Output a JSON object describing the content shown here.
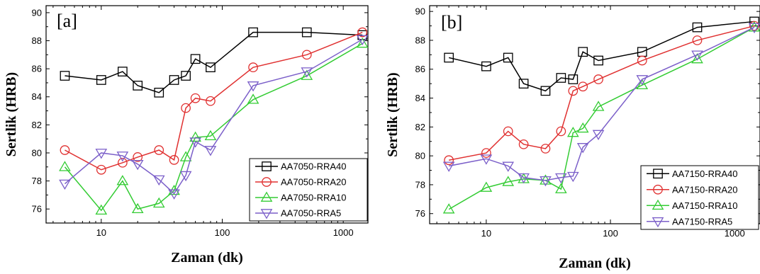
{
  "chart_data": [
    {
      "type": "line",
      "panel_label": "[a]",
      "xlabel": "Zaman (dk)",
      "ylabel": "Sertlik (HRB)",
      "xscale": "log",
      "xlim": [
        3.5,
        1600
      ],
      "ylim": [
        75,
        90.5
      ],
      "xticks": [
        10,
        100,
        1000
      ],
      "xtick_labels": [
        "10",
        "100",
        "1000"
      ],
      "yticks": [
        76,
        78,
        80,
        82,
        84,
        86,
        88,
        90
      ],
      "ytick_labels": [
        "76",
        "78",
        "80",
        "82",
        "84",
        "86",
        "88",
        "90"
      ],
      "legend_position": "bottom-right",
      "series": [
        {
          "name": "AA7050-RRA40",
          "color": "#000000",
          "marker": "square",
          "x": [
            5,
            10,
            15,
            20,
            30,
            40,
            50,
            60,
            80,
            180,
            500,
            1440
          ],
          "y": [
            85.5,
            85.2,
            85.8,
            84.8,
            84.3,
            85.2,
            85.5,
            86.7,
            86.1,
            88.6,
            88.6,
            88.4
          ]
        },
        {
          "name": "AA7050-RRA20",
          "color": "#e03030",
          "marker": "circle",
          "x": [
            5,
            10,
            15,
            20,
            30,
            40,
            50,
            60,
            80,
            180,
            500,
            1440
          ],
          "y": [
            80.2,
            78.8,
            79.3,
            79.7,
            80.2,
            79.5,
            83.2,
            83.9,
            83.7,
            86.1,
            87.0,
            88.6
          ]
        },
        {
          "name": "AA7050-RRA10",
          "color": "#33cc33",
          "marker": "triangle-up",
          "x": [
            5,
            10,
            15,
            20,
            30,
            40,
            50,
            60,
            80,
            180,
            500,
            1440
          ],
          "y": [
            79.0,
            75.9,
            78.0,
            76.0,
            76.4,
            77.3,
            79.7,
            81.1,
            81.2,
            83.8,
            85.5,
            87.8
          ]
        },
        {
          "name": "AA7050-RRA5",
          "color": "#7b5fc9",
          "marker": "triangle-down",
          "x": [
            5,
            10,
            15,
            20,
            30,
            40,
            50,
            60,
            80,
            180,
            500,
            1440
          ],
          "y": [
            77.8,
            80.0,
            79.8,
            79.2,
            78.1,
            77.1,
            78.4,
            80.8,
            80.2,
            84.8,
            85.8,
            88.1
          ]
        }
      ]
    },
    {
      "type": "line",
      "panel_label": "[b]",
      "xlabel": "Zaman (dk)",
      "ylabel": "Sertlik (HRB)",
      "xscale": "log",
      "xlim": [
        3.5,
        1600
      ],
      "ylim": [
        75.3,
        90.4
      ],
      "xticks": [
        10,
        100,
        1000
      ],
      "xtick_labels": [
        "10",
        "100",
        "1000"
      ],
      "yticks": [
        76,
        78,
        80,
        82,
        84,
        86,
        88,
        90
      ],
      "ytick_labels": [
        "76",
        "78",
        "80",
        "82",
        "84",
        "86",
        "88",
        "90"
      ],
      "legend_position": "bottom-right",
      "series": [
        {
          "name": "AA7150-RRA40",
          "color": "#000000",
          "marker": "square",
          "x": [
            5,
            10,
            15,
            20,
            30,
            40,
            50,
            60,
            80,
            180,
            500,
            1440
          ],
          "y": [
            86.8,
            86.2,
            86.8,
            85.0,
            84.5,
            85.4,
            85.3,
            87.2,
            86.6,
            87.2,
            88.9,
            89.3
          ]
        },
        {
          "name": "AA7150-RRA20",
          "color": "#e03030",
          "marker": "circle",
          "x": [
            5,
            10,
            15,
            20,
            30,
            40,
            50,
            60,
            80,
            180,
            500,
            1440
          ],
          "y": [
            79.7,
            80.2,
            81.7,
            80.8,
            80.5,
            81.7,
            84.5,
            84.8,
            85.3,
            86.6,
            88.0,
            89.0
          ]
        },
        {
          "name": "AA7150-RRA10",
          "color": "#33cc33",
          "marker": "triangle-up",
          "x": [
            5,
            10,
            15,
            20,
            30,
            40,
            50,
            60,
            80,
            180,
            500,
            1440
          ],
          "y": [
            76.3,
            77.8,
            78.2,
            78.4,
            78.3,
            77.7,
            81.6,
            81.9,
            83.4,
            84.9,
            86.7,
            88.9
          ]
        },
        {
          "name": "AA7150-RRA5",
          "color": "#7b5fc9",
          "marker": "triangle-down",
          "x": [
            5,
            10,
            15,
            20,
            30,
            40,
            50,
            60,
            80,
            180,
            500,
            1440
          ],
          "y": [
            79.3,
            79.8,
            79.3,
            78.5,
            78.3,
            78.5,
            78.6,
            80.6,
            81.5,
            85.3,
            87.0,
            88.9
          ]
        }
      ]
    }
  ]
}
